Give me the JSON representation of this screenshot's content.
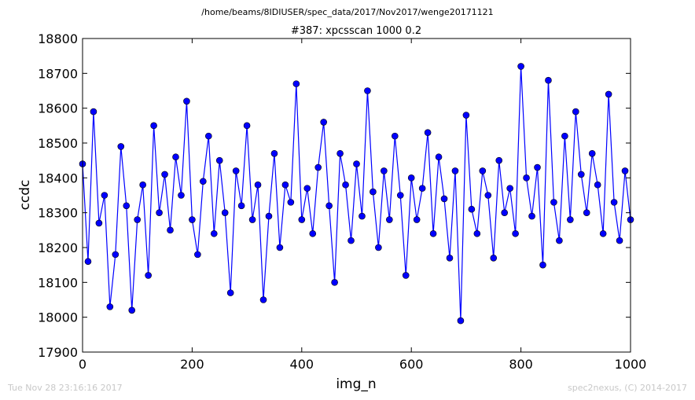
{
  "page": {
    "suptitle": "/home/beams/8IDIUSER/spec_data/2017/Nov2017/wenge20171121",
    "footer_left": "Tue Nov 28 23:16:16 2017",
    "footer_right": "spec2nexus, (C) 2014-2017"
  },
  "chart_data": {
    "type": "line",
    "title": "#387: xpcsscan 1000 0.2",
    "xlabel": "img_n",
    "ylabel": "ccdc",
    "xlim": [
      0,
      1000
    ],
    "ylim": [
      17900,
      18800
    ],
    "xticks": [
      0,
      200,
      400,
      600,
      800,
      1000
    ],
    "yticks": [
      17900,
      18000,
      18100,
      18200,
      18300,
      18400,
      18500,
      18600,
      18700,
      18800
    ],
    "grid": false,
    "legend": "none",
    "series": [
      {
        "color": "#0000ff",
        "marker": "circle",
        "x": [
          0,
          10,
          20,
          30,
          40,
          50,
          60,
          70,
          80,
          90,
          100,
          110,
          120,
          130,
          140,
          150,
          160,
          170,
          180,
          190,
          200,
          210,
          220,
          230,
          240,
          250,
          260,
          270,
          280,
          290,
          300,
          310,
          320,
          330,
          340,
          350,
          360,
          370,
          380,
          390,
          400,
          410,
          420,
          430,
          440,
          450,
          460,
          470,
          480,
          490,
          500,
          510,
          520,
          530,
          540,
          550,
          560,
          570,
          580,
          590,
          600,
          610,
          620,
          630,
          640,
          650,
          660,
          670,
          680,
          690,
          700,
          710,
          720,
          730,
          740,
          750,
          760,
          770,
          780,
          790,
          800,
          810,
          820,
          830,
          840,
          850,
          860,
          870,
          880,
          890,
          900,
          910,
          920,
          930,
          940,
          950,
          960,
          970,
          980,
          990,
          1000
        ],
        "y": [
          18440,
          18160,
          18590,
          18270,
          18350,
          18030,
          18180,
          18490,
          18320,
          18020,
          18280,
          18380,
          18120,
          18550,
          18300,
          18410,
          18250,
          18460,
          18350,
          18620,
          18280,
          18180,
          18390,
          18520,
          18240,
          18450,
          18300,
          18070,
          18420,
          18320,
          18550,
          18280,
          18380,
          18050,
          18290,
          18470,
          18200,
          18380,
          18330,
          18670,
          18280,
          18370,
          18240,
          18430,
          18560,
          18320,
          18100,
          18470,
          18380,
          18220,
          18440,
          18290,
          18650,
          18360,
          18200,
          18420,
          18280,
          18520,
          18350,
          18120,
          18400,
          18280,
          18370,
          18530,
          18240,
          18460,
          18340,
          18170,
          18420,
          17990,
          18580,
          18310,
          18240,
          18420,
          18350,
          18170,
          18450,
          18300,
          18370,
          18240,
          18720,
          18400,
          18290,
          18430,
          18150,
          18680,
          18330,
          18220,
          18520,
          18280,
          18590,
          18410,
          18300,
          18470,
          18380,
          18240,
          18640,
          18330,
          18220,
          18420,
          18280
        ]
      }
    ]
  }
}
